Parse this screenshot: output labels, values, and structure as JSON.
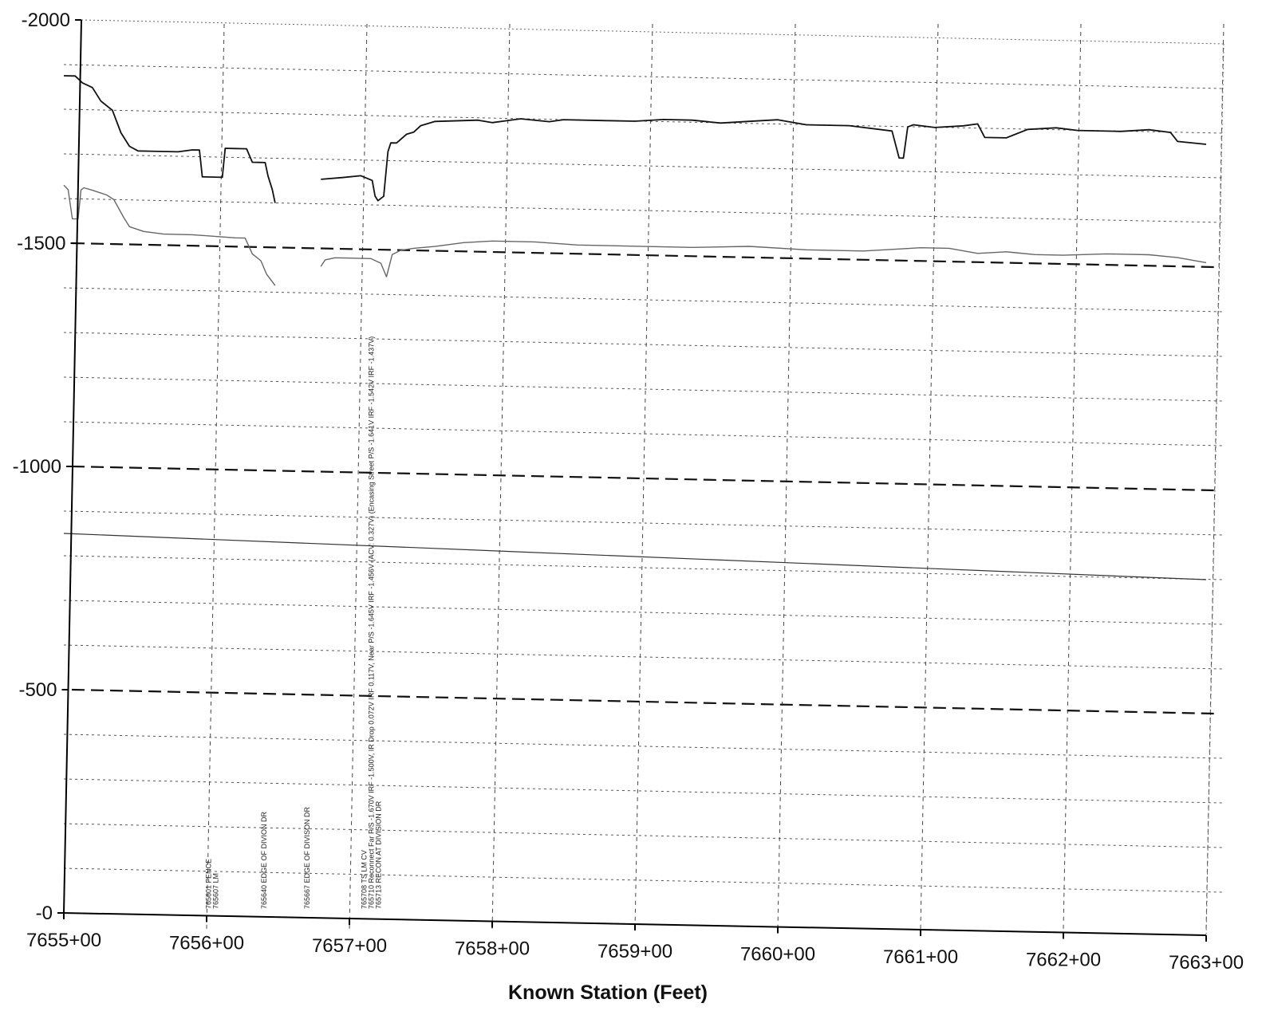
{
  "chart_data": {
    "type": "line",
    "title": "",
    "xlabel": "Known Station (Feet)",
    "ylabel": "",
    "x_range": [
      765500,
      766300
    ],
    "y_range": [
      -2000,
      0
    ],
    "y_inverted": true,
    "grid": true,
    "y_ticks": [
      {
        "value": -2000,
        "label": "-2000"
      },
      {
        "value": -1500,
        "label": "-1500"
      },
      {
        "value": -1000,
        "label": "-1000"
      },
      {
        "value": -500,
        "label": "-500"
      },
      {
        "value": 0,
        "label": "-0"
      }
    ],
    "x_ticks": [
      {
        "value": 765500,
        "label": "7655+00"
      },
      {
        "value": 765600,
        "label": "7656+00"
      },
      {
        "value": 765700,
        "label": "7657+00"
      },
      {
        "value": 765800,
        "label": "7658+00"
      },
      {
        "value": 765900,
        "label": "7659+00"
      },
      {
        "value": 766000,
        "label": "7660+00"
      },
      {
        "value": 766100,
        "label": "7661+00"
      },
      {
        "value": 766200,
        "label": "7662+00"
      },
      {
        "value": 766300,
        "label": "7663+00"
      }
    ],
    "reference_lines": [
      {
        "y": -1500
      },
      {
        "y": -1000
      },
      {
        "y": -500
      }
    ],
    "series": [
      {
        "style": "solid-dark",
        "x": [
          765500,
          765508,
          765513,
          765520,
          765526,
          765534,
          765540,
          765546,
          765552,
          765560,
          765570,
          765580,
          765590,
          765595,
          765597,
          765600,
          765605,
          765611,
          765613,
          765620,
          765625,
          765628,
          765632,
          765637,
          765641,
          765643,
          765646,
          765648
        ],
        "y": [
          -1875,
          -1875,
          -1860,
          -1850,
          -1820,
          -1800,
          -1750,
          -1720,
          -1710,
          -1710,
          -1710,
          -1710,
          -1715,
          -1715,
          -1655,
          -1655,
          -1655,
          -1655,
          -1720,
          -1720,
          -1720,
          -1720,
          -1690,
          -1690,
          -1690,
          -1660,
          -1630,
          -1600
        ]
      },
      {
        "style": "solid-dark",
        "x": [
          765680,
          765695,
          765708,
          765716,
          765718,
          765720,
          765724,
          765727,
          765729,
          765733,
          765740,
          765745,
          765750,
          765760,
          765790,
          765800,
          765820,
          765840,
          765850,
          765880,
          765900,
          765920,
          765940,
          765960,
          765980,
          766000,
          766020,
          766050,
          766080,
          766085,
          766088,
          766091,
          766095,
          766110,
          766130,
          766140,
          766145,
          766160,
          766175,
          766195,
          766210,
          766240,
          766260,
          766275,
          766280,
          766300
        ],
        "y": [
          -1655,
          -1660,
          -1665,
          -1655,
          -1620,
          -1610,
          -1620,
          -1720,
          -1740,
          -1740,
          -1760,
          -1765,
          -1780,
          -1790,
          -1795,
          -1790,
          -1800,
          -1795,
          -1800,
          -1800,
          -1800,
          -1805,
          -1805,
          -1800,
          -1805,
          -1810,
          -1800,
          -1800,
          -1790,
          -1730,
          -1730,
          -1800,
          -1805,
          -1800,
          -1805,
          -1810,
          -1780,
          -1780,
          -1800,
          -1805,
          -1800,
          -1800,
          -1805,
          -1800,
          -1780,
          -1775
        ]
      },
      {
        "style": "solid-light",
        "x": [
          765500,
          765503,
          765506,
          765510,
          765512,
          765514,
          765520,
          765530,
          765535,
          765542,
          765546,
          765556,
          765570,
          765590,
          765620,
          765627,
          765632,
          765638,
          765642,
          765648
        ],
        "y": [
          -1630,
          -1620,
          -1555,
          -1555,
          -1620,
          -1625,
          -1620,
          -1610,
          -1600,
          -1560,
          -1540,
          -1530,
          -1525,
          -1525,
          -1520,
          -1520,
          -1485,
          -1470,
          -1440,
          -1415
        ]
      },
      {
        "style": "solid-light",
        "x": [
          765680,
          765683,
          765690,
          765700,
          765715,
          765722,
          765726,
          765730,
          765736,
          765745,
          765760,
          765780,
          765800,
          765830,
          765860,
          765900,
          765940,
          765980,
          766020,
          766060,
          766100,
          766120,
          766140,
          766160,
          766180,
          766200,
          766230,
          766260,
          766280,
          766300
        ],
        "y": [
          -1460,
          -1475,
          -1480,
          -1480,
          -1480,
          -1470,
          -1440,
          -1490,
          -1500,
          -1505,
          -1510,
          -1520,
          -1525,
          -1525,
          -1520,
          -1520,
          -1520,
          -1525,
          -1520,
          -1520,
          -1530,
          -1530,
          -1520,
          -1525,
          -1520,
          -1520,
          -1525,
          -1525,
          -1520,
          -1510
        ]
      },
      {
        "style": "thin",
        "x": [
          765500,
          766300
        ],
        "y": [
          -850,
          -800
        ]
      }
    ],
    "annotations": [
      {
        "x": 765603,
        "text": "765601 FENCE"
      },
      {
        "x": 765608,
        "text": "765607 LM"
      },
      {
        "x": 765642,
        "text": "765640 EDGE OF DIVION DR"
      },
      {
        "x": 765672,
        "text": "765667 EDGE OF DIVISON DR"
      },
      {
        "x": 765712,
        "text": "765708 TS LM CV"
      },
      {
        "x": 765717,
        "text": "765710 Reconnect Far P/S -1.670V IRF -1.500V, IR Drop 0.072V IRF 0.117V, Near P/S -1.645V IRF -1.456V (ACV: 0.327V) (Encasing Street P/S -1.641V IRF -1.542V IRF -1.437V)"
      },
      {
        "x": 765722,
        "text": "765713 RECON AT DIVISION DR"
      }
    ]
  }
}
